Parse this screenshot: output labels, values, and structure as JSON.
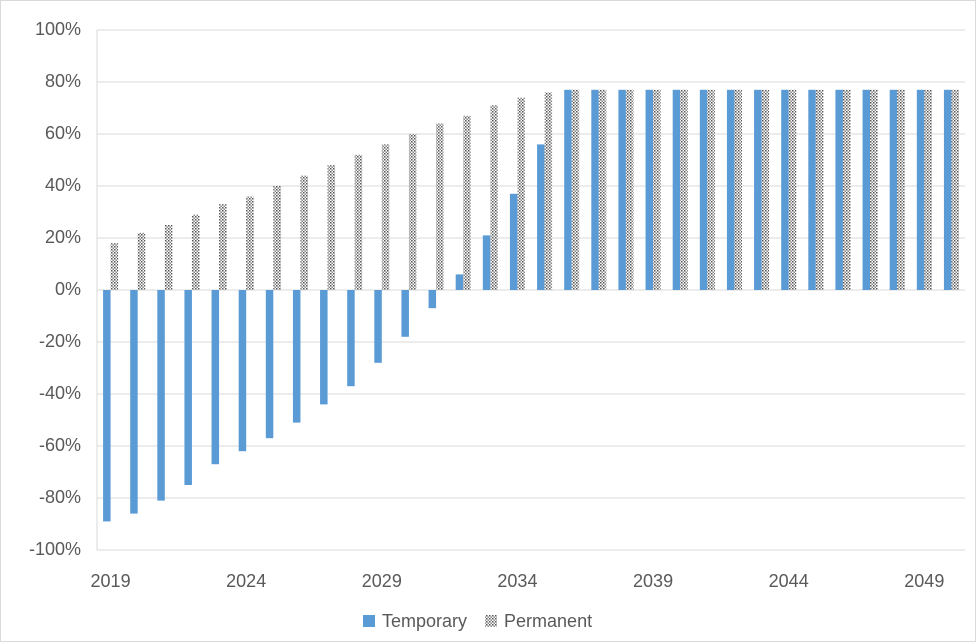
{
  "chart_data": {
    "type": "bar",
    "categories": [
      "2019",
      null,
      null,
      null,
      null,
      "2024",
      null,
      null,
      null,
      null,
      "2029",
      null,
      null,
      null,
      null,
      "2034",
      null,
      null,
      null,
      null,
      "2039",
      null,
      null,
      null,
      null,
      "2044",
      null,
      null,
      null,
      null,
      "2049",
      null
    ],
    "series": [
      {
        "name": "Temporary",
        "color": "#5b9bd5",
        "values": [
          -89,
          -86,
          -81,
          -75,
          -67,
          -62,
          -57,
          -51,
          -44,
          -37,
          -28,
          -18,
          -7,
          6,
          21,
          37,
          56,
          77,
          77,
          77,
          77,
          77,
          77,
          77,
          77,
          77,
          77,
          77,
          77,
          77,
          77,
          77
        ]
      },
      {
        "name": "Permanent",
        "color": "#7f7f7f",
        "values": [
          18,
          22,
          25,
          29,
          33,
          36,
          40,
          44,
          48,
          52,
          56,
          60,
          64,
          67,
          71,
          74,
          76,
          77,
          77,
          77,
          77,
          77,
          77,
          77,
          77,
          77,
          77,
          77,
          77,
          77,
          77,
          77
        ]
      }
    ],
    "ylim": [
      -100,
      100
    ],
    "yticks": [
      {
        "value": -100,
        "label": "-100%"
      },
      {
        "value": -80,
        "label": "-80%"
      },
      {
        "value": -60,
        "label": "-60%"
      },
      {
        "value": -40,
        "label": "-40%"
      },
      {
        "value": -20,
        "label": "-20%"
      },
      {
        "value": 0,
        "label": "0%"
      },
      {
        "value": 20,
        "label": "20%"
      },
      {
        "value": 40,
        "label": "40%"
      },
      {
        "value": 60,
        "label": "60%"
      },
      {
        "value": 80,
        "label": "80%"
      },
      {
        "value": 100,
        "label": "100%"
      }
    ],
    "grid": true,
    "legend": "bottom"
  }
}
